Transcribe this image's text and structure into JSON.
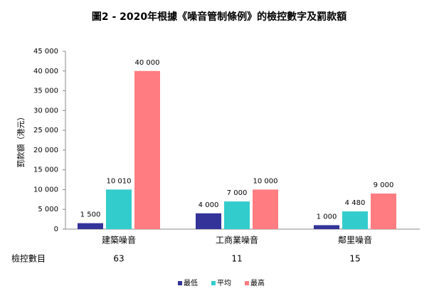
{
  "chart_data": {
    "type": "bar",
    "title": "圖2 - 2020年根據《噪音管制條例》的檢控數字及罰款額",
    "y_label": "罰款額（港元）",
    "categories": [
      "建築噪音",
      "工商業噪音",
      "鄰里噪音"
    ],
    "series": [
      {
        "name": "最低",
        "color": "#333399",
        "values": [
          1500,
          4000,
          1000
        ],
        "value_labels": [
          "1 500",
          "4 000",
          "1 000"
        ]
      },
      {
        "name": "平均",
        "color": "#33cccc",
        "values": [
          10010,
          7000,
          4480
        ],
        "value_labels": [
          "10 010",
          "7 000",
          "4 480"
        ]
      },
      {
        "name": "最高",
        "color": "#ff7c80",
        "values": [
          40000,
          10000,
          9000
        ],
        "value_labels": [
          "40 000",
          "10 000",
          "9 000"
        ]
      }
    ],
    "ylim": [
      0,
      45000
    ],
    "yticks": [
      0,
      {
        "value": 5000,
        "label": "5 000"
      },
      {
        "value": 10000,
        "label": "10 000"
      },
      {
        "value": 15000,
        "label": "15 000"
      },
      {
        "value": 20000,
        "label": "20 000"
      },
      {
        "value": 25000,
        "label": "25 000"
      },
      {
        "value": 30000,
        "label": "30 000"
      },
      {
        "value": 35000,
        "label": "35 000"
      },
      {
        "value": 40000,
        "label": "40 000"
      },
      {
        "value": 45000,
        "label": "45 000"
      }
    ],
    "grid": false,
    "legend": "bottom",
    "count_label": "檢控數目",
    "counts": [
      63,
      11,
      15
    ]
  }
}
